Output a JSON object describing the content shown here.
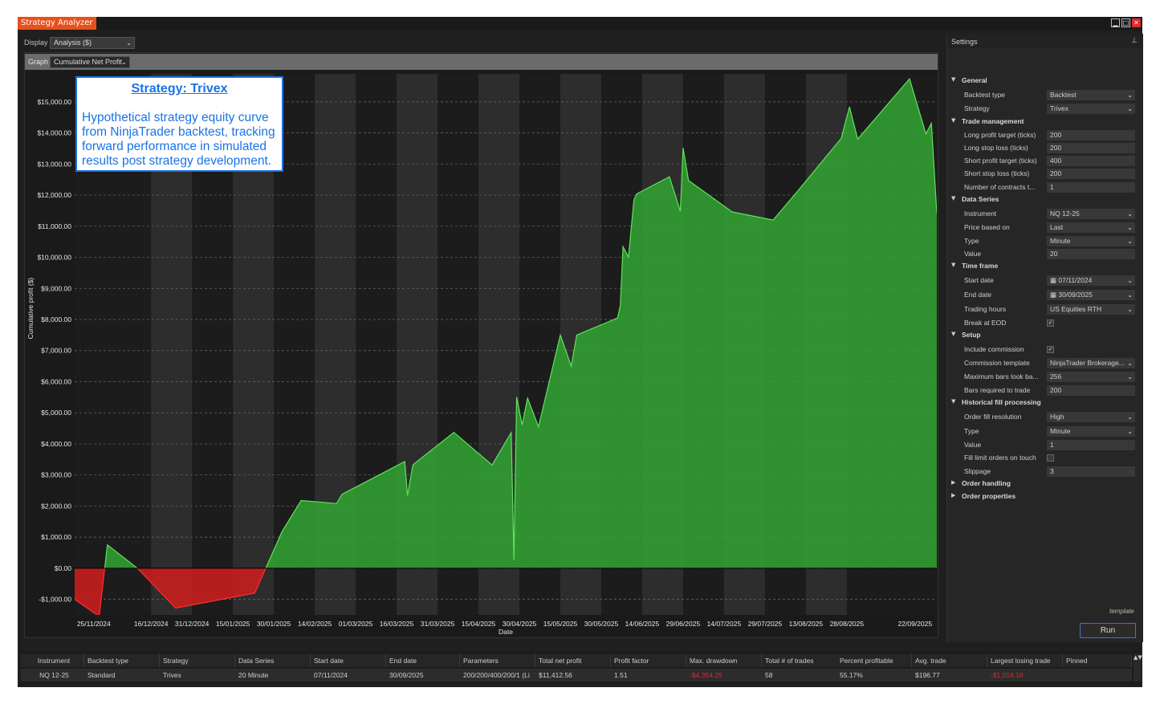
{
  "window": {
    "title": "Strategy Analyzer"
  },
  "toolbar": {
    "display_label": "Display",
    "display_value": "Analysis ($)",
    "graph_label": "Graph",
    "graph_value": "Cumulative Net Profit"
  },
  "annotation": {
    "title": "Strategy: Trivex",
    "body": "Hypothetical strategy equity curve from NinjaTrader backtest, tracking forward performance in simulated results post strategy development."
  },
  "chart_data": {
    "type": "area",
    "title": "",
    "xlabel": "Date",
    "ylabel": "Cumulative profit ($)",
    "ylim": [
      -1500,
      15900
    ],
    "yticks": [
      -1000,
      0,
      1000,
      2000,
      3000,
      4000,
      5000,
      6000,
      7000,
      8000,
      9000,
      10000,
      11000,
      12000,
      13000,
      14000,
      15000
    ],
    "ytick_labels": [
      "-$1,000.00",
      "$0.00",
      "$1,000.00",
      "$2,000.00",
      "$3,000.00",
      "$4,000.00",
      "$5,000.00",
      "$6,000.00",
      "$7,000.00",
      "$8,000.00",
      "$9,000.00",
      "$10,000.00",
      "$11,000.00",
      "$12,000.00",
      "$13,000.00",
      "$14,000.00",
      "$15,000.00"
    ],
    "xtick_labels": [
      "25/11/2024",
      "16/12/2024",
      "31/12/2024",
      "15/01/2025",
      "30/01/2025",
      "14/02/2025",
      "01/03/2025",
      "16/03/2025",
      "31/03/2025",
      "15/04/2025",
      "30/04/2025",
      "15/05/2025",
      "30/05/2025",
      "14/06/2025",
      "29/06/2025",
      "14/07/2025",
      "29/07/2025",
      "13/08/2025",
      "28/08/2025",
      "22/09/2025"
    ],
    "xtick_dates": [
      "2024-11-25",
      "2024-12-16",
      "2024-12-31",
      "2025-01-15",
      "2025-01-30",
      "2025-02-14",
      "2025-03-01",
      "2025-03-16",
      "2025-03-31",
      "2025-04-15",
      "2025-04-30",
      "2025-05-15",
      "2025-05-30",
      "2025-06-14",
      "2025-06-29",
      "2025-07-14",
      "2025-07-29",
      "2025-08-13",
      "2025-08-28",
      "2025-09-22"
    ],
    "xlim": [
      "2024-11-18",
      "2025-09-30"
    ],
    "grid": true,
    "positive_color": "#33a532",
    "negative_color": "#c81e1e",
    "series": [
      {
        "x": [
          "2024-11-18",
          "2024-11-27",
          "2024-11-30",
          "2024-12-11",
          "2024-12-25",
          "2025-01-23",
          "2025-02-02",
          "2025-02-09",
          "2025-02-22",
          "2025-02-24",
          "2025-03-19",
          "2025-03-20",
          "2025-03-22",
          "2025-04-06",
          "2025-04-20",
          "2025-04-27",
          "2025-04-28",
          "2025-04-29",
          "2025-05-01",
          "2025-05-03",
          "2025-05-07",
          "2025-05-15",
          "2025-05-19",
          "2025-05-21",
          "2025-06-05",
          "2025-06-06",
          "2025-06-07",
          "2025-06-09",
          "2025-06-11",
          "2025-06-12",
          "2025-06-24",
          "2025-06-28",
          "2025-06-29",
          "2025-07-01",
          "2025-07-17",
          "2025-08-01",
          "2025-08-10",
          "2025-08-26",
          "2025-08-29",
          "2025-09-01",
          "2025-09-20",
          "2025-09-26",
          "2025-09-28",
          "2025-09-30"
        ],
        "y": [
          -1000,
          -1550,
          750,
          0,
          -1280,
          -800,
          1180,
          2180,
          2080,
          2380,
          3430,
          2340,
          3330,
          4370,
          3320,
          4360,
          260,
          5510,
          4610,
          5470,
          4550,
          7500,
          6500,
          7500,
          8050,
          8450,
          10340,
          10010,
          11850,
          12040,
          12590,
          11480,
          13520,
          12470,
          11460,
          11200,
          12130,
          13830,
          14840,
          13800,
          15740,
          13970,
          14310,
          11410
        ]
      }
    ]
  },
  "settings": {
    "title": "Settings",
    "rows": [
      {
        "type": "header",
        "label": "General"
      },
      {
        "type": "dropdown",
        "name": "Backtest type",
        "value": "Backtest"
      },
      {
        "type": "dropdown",
        "name": "Strategy",
        "value": "Trivex"
      },
      {
        "type": "header",
        "label": "Trade management"
      },
      {
        "type": "field",
        "name": "Long profit target (ticks)",
        "value": "200"
      },
      {
        "type": "field",
        "name": "Long stop loss (ticks)",
        "value": "200"
      },
      {
        "type": "field",
        "name": "Short profit target (ticks)",
        "value": "400"
      },
      {
        "type": "field",
        "name": "Short stop loss (ticks)",
        "value": "200"
      },
      {
        "type": "field",
        "name": "Number of contracts t...",
        "value": "1"
      },
      {
        "type": "header",
        "label": "Data Series"
      },
      {
        "type": "dropdown",
        "name": "Instrument",
        "value": "NQ 12-25"
      },
      {
        "type": "dropdown",
        "name": "Price based on",
        "value": "Last"
      },
      {
        "type": "dropdown",
        "name": "Type",
        "value": "Minute"
      },
      {
        "type": "field",
        "name": "Value",
        "value": "20"
      },
      {
        "type": "header",
        "label": "Time frame"
      },
      {
        "type": "date",
        "name": "Start date",
        "value": "07/11/2024"
      },
      {
        "type": "date",
        "name": "End date",
        "value": "30/09/2025"
      },
      {
        "type": "dropdown",
        "name": "Trading hours",
        "value": "US Equities RTH"
      },
      {
        "type": "check",
        "name": "Break at EOD",
        "value": "✓"
      },
      {
        "type": "header",
        "label": "Setup"
      },
      {
        "type": "check",
        "name": "Include commission",
        "value": "✓"
      },
      {
        "type": "dropdown",
        "name": "Commission template",
        "value": "NinjaTrader Brokerage..."
      },
      {
        "type": "dropdown",
        "name": "Maximum bars look ba...",
        "value": "256"
      },
      {
        "type": "field",
        "name": "Bars required to trade",
        "value": "200"
      },
      {
        "type": "header",
        "label": "Historical fill processing"
      },
      {
        "type": "dropdown",
        "name": "Order fill resolution",
        "value": "High"
      },
      {
        "type": "dropdown",
        "name": "Type",
        "value": "Minute"
      },
      {
        "type": "field",
        "name": "Value",
        "value": "1"
      },
      {
        "type": "check",
        "name": "Fill limit orders on touch",
        "value": ""
      },
      {
        "type": "field",
        "name": "Slippage",
        "value": "3"
      },
      {
        "type": "collapsed",
        "label": "Order handling"
      },
      {
        "type": "collapsed",
        "label": "Order properties"
      }
    ],
    "template_label": "template",
    "run_label": "Run"
  },
  "results": {
    "columns": [
      "Instrument",
      "Backtest type",
      "Strategy",
      "Data Series",
      "Start date",
      "End date",
      "Parameters",
      "Total net profit",
      "Profit factor",
      "Max. drawdown",
      "Total # of trades",
      "Percent profitable",
      "Avg. trade",
      "Largest losing trade",
      "Pinned"
    ],
    "row": [
      "NQ 12-25",
      "Standard",
      "Trivex",
      "20 Minute",
      "07/11/2024",
      "30/09/2025",
      "200/200/400/200/1 (Li",
      "$11,412.56",
      "1.51",
      "-$4,354.25",
      "58",
      "55.17%",
      "$196.77",
      "-$1,016.16",
      ""
    ],
    "negative_color": "#e02a2a"
  }
}
